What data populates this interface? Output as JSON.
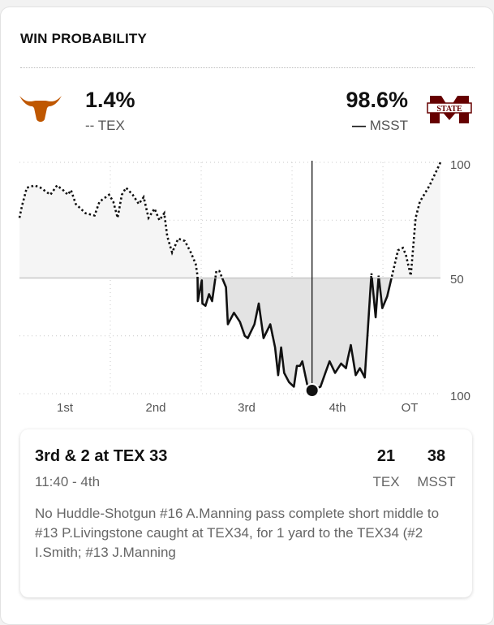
{
  "header": {
    "title": "WIN PROBABILITY"
  },
  "teams": {
    "home": {
      "abbr": "TEX",
      "pct": "1.4%",
      "legend": "--",
      "color": "#bf5700",
      "logo": "longhorn-logo"
    },
    "away": {
      "abbr": "MSST",
      "pct": "98.6%",
      "legend": "—",
      "color": "#660000",
      "logo": "msst-state-logo",
      "logo_text": "STATE"
    }
  },
  "chart_data": {
    "type": "line",
    "x_tick_labels": [
      "1st",
      "2nd",
      "3rd",
      "4th",
      "OT"
    ],
    "y_tick_labels": [
      "100",
      "50",
      "100"
    ],
    "ylim": [
      0,
      100
    ],
    "xlim": [
      0,
      69.5
    ],
    "grid": true,
    "line_styles": {
      "TEX": "dotted",
      "MSST": "solid"
    },
    "x": [
      0,
      0.4,
      1.2,
      2.5,
      3.5,
      5.1,
      6.2,
      7.2,
      8.0,
      8.5,
      9.3,
      10.9,
      12.4,
      13.2,
      14.8,
      15.5,
      16.2,
      16.9,
      17.6,
      18.7,
      19.7,
      20.5,
      21.3,
      22.3,
      23.1,
      23.9,
      24.4,
      25.2,
      26.2,
      27.3,
      28.3,
      29.1,
      29.4,
      29.45,
      30.1,
      30.2,
      30.7,
      31.3,
      31.8,
      32.5,
      33.0,
      34.1,
      34.4,
      35.4,
      36.4,
      37.2,
      37.7,
      38.8,
      39.5,
      40.3,
      41.4,
      42.2,
      42.7,
      43.2,
      43.7,
      44.5,
      45.3,
      45.8,
      46.3,
      46.7,
      47.1,
      47.5,
      48.3,
      49.7,
      50.5,
      51.2,
      52.1,
      53.1,
      53.9,
      54.2,
      54.7,
      55.5,
      56.2,
      57.0,
      58.1,
      58.8,
      59.3,
      59.9,
      60.7,
      61.5,
      62.5,
      63.3,
      63.8,
      64.6,
      65.4,
      66.1,
      67.7,
      69.5
    ],
    "y": [
      76,
      81,
      89,
      90,
      89,
      86,
      90,
      88,
      86,
      88,
      82,
      78,
      77,
      83,
      86,
      83,
      76,
      86,
      89,
      86,
      82,
      85,
      76,
      80,
      75,
      78,
      68,
      61,
      67,
      66,
      61,
      56,
      51,
      40,
      49,
      39,
      38,
      43,
      40,
      53,
      53,
      46,
      30,
      35,
      31,
      25,
      24,
      30,
      39,
      24,
      30,
      20,
      8,
      20,
      9,
      5,
      3,
      12,
      12,
      14,
      9,
      4,
      1.4,
      3,
      9,
      14,
      9,
      13,
      11,
      15,
      21,
      8,
      11,
      7,
      52,
      33,
      51,
      37,
      42,
      51,
      62,
      63,
      60,
      51,
      76,
      83,
      90,
      100
    ],
    "current": {
      "x": 48.3,
      "y": 1.4
    }
  },
  "play": {
    "situation": "3rd & 2 at TEX 33",
    "clock": "11:40 - 4th",
    "home_score": "21",
    "away_score": "38",
    "home_abbr": "TEX",
    "away_abbr": "MSST",
    "description": "No Huddle-Shotgun #16 A.Manning pass complete short middle to #13 P.Livingstone caught at TEX34, for 1 yard to the TEX34 (#2 I.Smith; #13 J.Manning"
  }
}
